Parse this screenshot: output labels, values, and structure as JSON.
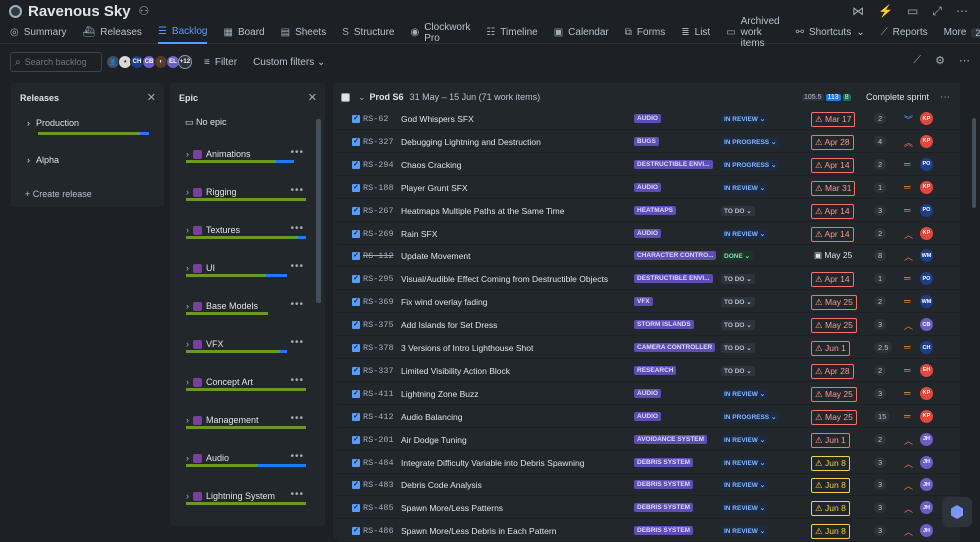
{
  "app": {
    "title": "Ravenous Sky"
  },
  "tabs": [
    {
      "label": "Summary",
      "icon": "globe-icon",
      "glyph": "◎"
    },
    {
      "label": "Releases",
      "icon": "ship-icon",
      "glyph": "⛴"
    },
    {
      "label": "Backlog",
      "icon": "backlog-icon",
      "glyph": "☰",
      "active": true
    },
    {
      "label": "Board",
      "icon": "board-icon",
      "glyph": "▦"
    },
    {
      "label": "Sheets",
      "icon": "sheets-icon",
      "glyph": "▤"
    },
    {
      "label": "Structure",
      "icon": "structure-icon",
      "glyph": "S"
    },
    {
      "label": "Clockwork Pro",
      "icon": "clockwork-icon",
      "glyph": "◉"
    },
    {
      "label": "Timeline",
      "icon": "timeline-icon",
      "glyph": "☷"
    },
    {
      "label": "Calendar",
      "icon": "calendar-icon",
      "glyph": "▣"
    },
    {
      "label": "Forms",
      "icon": "forms-icon",
      "glyph": "⧉"
    },
    {
      "label": "List",
      "icon": "list-icon",
      "glyph": "≣"
    },
    {
      "label": "Archived work items",
      "icon": "archive-icon",
      "glyph": "▭"
    },
    {
      "label": "Shortcuts",
      "icon": "link-icon",
      "glyph": "⚯"
    },
    {
      "label": "Reports",
      "icon": "reports-icon",
      "glyph": "⟋"
    },
    {
      "label": "More",
      "icon": "more-icon",
      "glyph": ""
    }
  ],
  "more_count": "2",
  "toolbar": {
    "search_placeholder": "Search backlog",
    "avatar_more": "+12",
    "filter_label": "Filter",
    "custom_filters_label": "Custom filters"
  },
  "releases_panel": {
    "title": "Releases",
    "items": [
      "Production",
      "Alpha"
    ],
    "create_label": "Create release"
  },
  "epic_panel": {
    "title": "Epic",
    "no_epic_label": "No epic",
    "epics": [
      {
        "name": "Animations",
        "green": 0.75,
        "blue": 0.15
      },
      {
        "name": "Rigging",
        "green": 1.0,
        "blue": 0.0
      },
      {
        "name": "Textures",
        "green": 0.93,
        "blue": 0.07
      },
      {
        "name": "UI",
        "green": 0.67,
        "blue": 0.17
      },
      {
        "name": "Base Models",
        "green": 0.68,
        "blue": 0.0
      },
      {
        "name": "VFX",
        "green": 0.78,
        "blue": 0.06
      },
      {
        "name": "Concept Art",
        "green": 1.0,
        "blue": 0.0
      },
      {
        "name": "Management",
        "green": 1.0,
        "blue": 0.0
      },
      {
        "name": "Audio",
        "green": 0.6,
        "blue": 0.4
      },
      {
        "name": "Lightning System",
        "green": 1.0,
        "blue": 0.0
      }
    ]
  },
  "sprint": {
    "name": "Prod S6",
    "dates": "31 May – 15 Jun (71 work items)",
    "counts": [
      "105.5",
      "113",
      "8"
    ],
    "complete_label": "Complete sprint"
  },
  "colors": {
    "overdue": "#f87168",
    "due_soon": "#f5cd47",
    "epic_lozenge": "#5e4db2",
    "progress_green": "#6a9a23",
    "progress_blue": "#1d7afc"
  },
  "issues": [
    {
      "key": "RS-62",
      "summary": "God Whispers SFX",
      "epic": "AUDIO",
      "status": "IN REVIEW",
      "status_class": "in-review",
      "due": "Mar 17",
      "due_class": "overdue",
      "est": "2",
      "priority": "lowest",
      "assignee": "KP",
      "assignee_color": "#e2483d"
    },
    {
      "key": "RS-327",
      "summary": "Debugging Lightning and Destruction",
      "epic": "BUGS",
      "status": "IN PROGRESS",
      "status_class": "in-progress",
      "due": "Apr 28",
      "due_class": "overdue",
      "est": "4",
      "priority": "highest",
      "assignee": "KP",
      "assignee_color": "#e2483d"
    },
    {
      "key": "RS-294",
      "summary": "Chaos Cracking",
      "epic": "DESTRUCTIBLE ENVI...",
      "status": "IN PROGRESS",
      "status_class": "in-progress",
      "due": "Apr 14",
      "due_class": "overdue",
      "est": "2",
      "priority": "medium",
      "assignee": "PO",
      "assignee_color": "#1d3f8a"
    },
    {
      "key": "RS-188",
      "summary": "Player Grunt SFX",
      "epic": "AUDIO",
      "status": "IN REVIEW",
      "status_class": "in-review",
      "due": "Mar 31",
      "due_class": "overdue",
      "est": "1",
      "priority": "medium",
      "assignee": "KP",
      "assignee_color": "#e2483d"
    },
    {
      "key": "RS-267",
      "summary": "Heatmaps Multiple Paths at the Same Time",
      "epic": "HEATMAPS",
      "status": "TO DO",
      "status_class": "to-do",
      "due": "Apr 14",
      "due_class": "overdue",
      "est": "3",
      "priority": "medium",
      "assignee": "PO",
      "assignee_color": "#1d3f8a"
    },
    {
      "key": "RS-269",
      "summary": "Rain SFX",
      "epic": "AUDIO",
      "status": "IN REVIEW",
      "status_class": "in-review",
      "due": "Apr 14",
      "due_class": "overdue",
      "est": "2",
      "priority": "high",
      "assignee": "KP",
      "assignee_color": "#e2483d"
    },
    {
      "key": "RS-112",
      "summary": "Update Movement",
      "epic": "CHARACTER CONTRO...",
      "status": "DONE",
      "status_class": "done",
      "due": "May 25",
      "due_class": "normal",
      "est": "8",
      "priority": "high",
      "assignee": "WM",
      "assignee_color": "#1d3f8a",
      "done": true
    },
    {
      "key": "RS-295",
      "summary": "Visual/Audible Effect Coming from Destructible Objects",
      "epic": "DESTRUCTIBLE ENVI...",
      "status": "TO DO",
      "status_class": "to-do",
      "due": "Apr 14",
      "due_class": "overdue",
      "est": "1",
      "priority": "medium",
      "assignee": "PO",
      "assignee_color": "#1d3f8a"
    },
    {
      "key": "RS-369",
      "summary": "Fix wind overlay fading",
      "epic": "VFX",
      "status": "TO DO",
      "status_class": "to-do",
      "due": "May 25",
      "due_class": "overdue",
      "est": "2",
      "priority": "medium",
      "assignee": "WM",
      "assignee_color": "#1d3f8a"
    },
    {
      "key": "RS-375",
      "summary": "Add Islands for Set Dress",
      "epic": "STORM ISLANDS",
      "status": "TO DO",
      "status_class": "to-do",
      "due": "May 25",
      "due_class": "overdue",
      "est": "3",
      "priority": "high",
      "assignee": "CB",
      "assignee_color": "#6e5dc6"
    },
    {
      "key": "RS-378",
      "summary": "3 Versions of Intro Lighthouse Shot",
      "epic": "CAMERA CONTROLLER",
      "status": "TO DO",
      "status_class": "to-do",
      "due": "Jun 1",
      "due_class": "overdue",
      "est": "2.5",
      "priority": "medium",
      "assignee": "CH",
      "assignee_color": "#1d3f8a"
    },
    {
      "key": "RS-337",
      "summary": "Limited Visibility Action Block",
      "epic": "RESEARCH",
      "status": "TO DO",
      "status_class": "to-do",
      "due": "Apr 28",
      "due_class": "overdue",
      "est": "2",
      "priority": "medium",
      "assignee": "EH",
      "assignee_color": "#e2483d"
    },
    {
      "key": "RS-411",
      "summary": "Lightning Zone Buzz",
      "epic": "AUDIO",
      "status": "IN REVIEW",
      "status_class": "in-review",
      "due": "May 25",
      "due_class": "overdue",
      "est": "3",
      "priority": "medium",
      "assignee": "KP",
      "assignee_color": "#e2483d"
    },
    {
      "key": "RS-412",
      "summary": "Audio Balancing",
      "epic": "AUDIO",
      "status": "IN PROGRESS",
      "status_class": "in-progress",
      "due": "May 25",
      "due_class": "overdue",
      "est": "15",
      "priority": "medium",
      "assignee": "KP",
      "assignee_color": "#e2483d"
    },
    {
      "key": "RS-201",
      "summary": "Air Dodge Tuning",
      "epic": "AVOIDANCE SYSTEM",
      "status": "IN REVIEW",
      "status_class": "in-review",
      "due": "Jun 1",
      "due_class": "overdue",
      "est": "2",
      "priority": "high",
      "assignee": "JH",
      "assignee_color": "#6e5dc6"
    },
    {
      "key": "RS-484",
      "summary": "Integrate Difficulty Variable into Debris Spawning",
      "epic": "DEBRIS SYSTEM",
      "status": "IN REVIEW",
      "status_class": "in-review",
      "due": "Jun 8",
      "due_class": "soon",
      "est": "3",
      "priority": "high",
      "assignee": "JH",
      "assignee_color": "#6e5dc6"
    },
    {
      "key": "RS-483",
      "summary": "Debris Code Analysis",
      "epic": "DEBRIS SYSTEM",
      "status": "IN REVIEW",
      "status_class": "in-review",
      "due": "Jun 8",
      "due_class": "soon",
      "est": "3",
      "priority": "high",
      "assignee": "JH",
      "assignee_color": "#6e5dc6"
    },
    {
      "key": "RS-485",
      "summary": "Spawn More/Less Patterns",
      "epic": "DEBRIS SYSTEM",
      "status": "IN REVIEW",
      "status_class": "in-review",
      "due": "Jun 8",
      "due_class": "soon",
      "est": "3",
      "priority": "high",
      "assignee": "JH",
      "assignee_color": "#6e5dc6"
    },
    {
      "key": "RS-486",
      "summary": "Spawn More/Less Debris in Each Pattern",
      "epic": "DEBRIS SYSTEM",
      "status": "IN REVIEW",
      "status_class": "in-review",
      "due": "Jun 8",
      "due_class": "soon",
      "est": "3",
      "priority": "high",
      "assignee": "JH",
      "assignee_color": "#6e5dc6"
    }
  ]
}
